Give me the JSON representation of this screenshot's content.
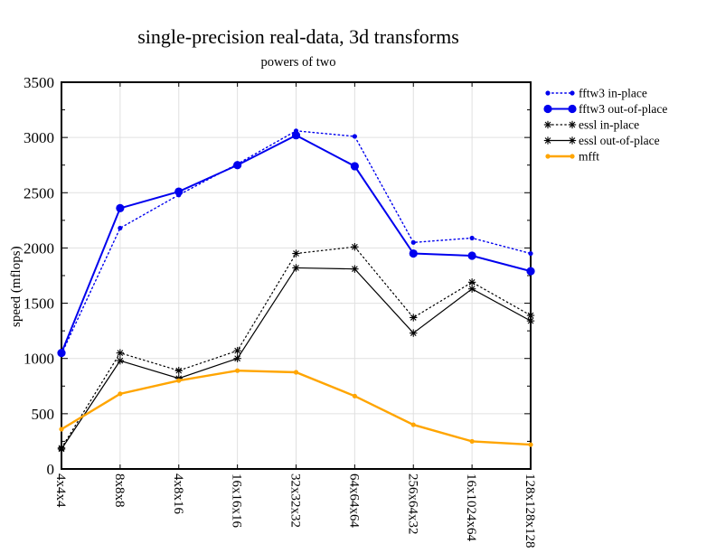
{
  "chart_data": {
    "type": "line",
    "title": "single-precision real-data, 3d transforms",
    "subtitle": "powers of two",
    "ylabel": "speed (mflops)",
    "xlabel": "",
    "ylim": [
      0,
      3500
    ],
    "ytick_interval": 500,
    "minor_ytick_interval": 250,
    "grid": true,
    "legend_position": "outside-top-right",
    "categories": [
      "4x4x4",
      "8x8x8",
      "4x8x16",
      "16x16x16",
      "32x32x32",
      "64x64x64",
      "256x64x32",
      "16x1024x64",
      "128x128x128"
    ],
    "series": [
      {
        "name": "fftw3 in-place",
        "color": "#0000ee",
        "line": "dotted",
        "marker": "circle-small",
        "width": 1.4,
        "values": [
          1040,
          2180,
          2480,
          2760,
          3060,
          3010,
          2050,
          2090,
          1950
        ]
      },
      {
        "name": "fftw3 out-of-place",
        "color": "#0000ee",
        "line": "solid",
        "marker": "circle-large",
        "width": 2.0,
        "values": [
          1050,
          2360,
          2510,
          2750,
          3020,
          2740,
          1950,
          1930,
          1790
        ]
      },
      {
        "name": "essl in-place",
        "color": "#000000",
        "line": "dotted",
        "marker": "asterisk",
        "width": 1.2,
        "values": [
          190,
          1050,
          890,
          1070,
          1950,
          2010,
          1370,
          1690,
          1390
        ]
      },
      {
        "name": "essl out-of-place",
        "color": "#000000",
        "line": "solid",
        "marker": "asterisk",
        "width": 1.2,
        "values": [
          180,
          980,
          820,
          1000,
          1820,
          1810,
          1230,
          1630,
          1340
        ]
      },
      {
        "name": "mfft",
        "color": "#ffa500",
        "line": "solid",
        "marker": "circle-small",
        "width": 2.4,
        "values": [
          360,
          680,
          800,
          890,
          875,
          660,
          400,
          250,
          220
        ]
      }
    ],
    "colors": {
      "grid": "#e0e0e0",
      "axis": "#000000",
      "text": "#000000"
    }
  }
}
